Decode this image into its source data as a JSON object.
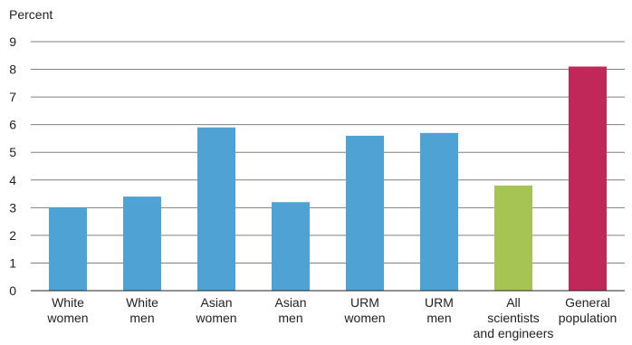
{
  "chart_data": {
    "type": "bar",
    "title": "",
    "ylabel": "Percent",
    "xlabel": "",
    "ylim": [
      0,
      9
    ],
    "yticks": [
      0,
      1,
      2,
      3,
      4,
      5,
      6,
      7,
      8,
      9
    ],
    "grid": true,
    "categories": [
      [
        "White",
        "women"
      ],
      [
        "White",
        "men"
      ],
      [
        "Asian",
        "women"
      ],
      [
        "Asian",
        "men"
      ],
      [
        "URM",
        "women"
      ],
      [
        "URM",
        "men"
      ],
      [
        "All",
        "scientists",
        "and engineers"
      ],
      [
        "General",
        "population"
      ]
    ],
    "values": [
      3.0,
      3.4,
      5.9,
      3.2,
      5.6,
      5.7,
      3.8,
      8.1
    ],
    "colors": [
      "#4fa3d4",
      "#4fa3d4",
      "#4fa3d4",
      "#4fa3d4",
      "#4fa3d4",
      "#4fa3d4",
      "#a5c454",
      "#c0285a"
    ]
  }
}
